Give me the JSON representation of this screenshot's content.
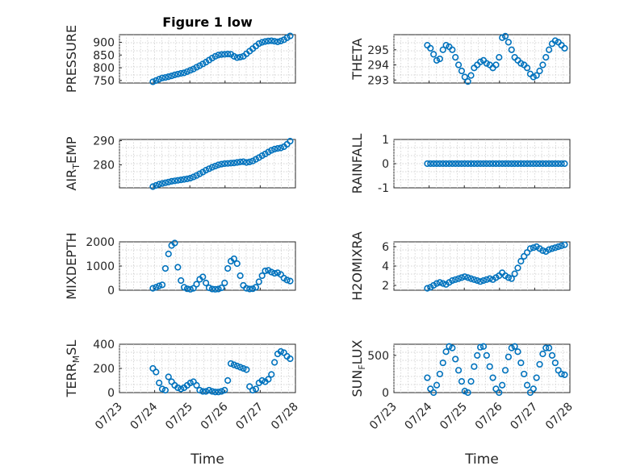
{
  "figure": {
    "title": "Figure 1 low",
    "marker_color": "#0072bd",
    "axis_color": "#262626",
    "grid_color": "#c8c8c8"
  },
  "chart_data": [
    {
      "type": "scatter",
      "marker": "circle",
      "title": "Figure 1 low",
      "ylabel": "PRESSURE",
      "ylabel_sub": "",
      "xlabel": "",
      "xlim": [
        "07/23",
        "07/28"
      ],
      "ylim": [
        740,
        930
      ],
      "yticks": [
        750,
        800,
        850,
        900
      ],
      "xticks": [
        "07/23",
        "07/24",
        "07/25",
        "07/26",
        "07/27",
        "07/28"
      ],
      "grid": true,
      "show_x_ticklabels": false,
      "series": [
        {
          "x_days_start": 0.95,
          "x_days_end": 4.85,
          "y": [
            745,
            750,
            755,
            760,
            762,
            765,
            768,
            772,
            775,
            778,
            780,
            785,
            790,
            795,
            802,
            808,
            815,
            822,
            830,
            838,
            845,
            850,
            852,
            853,
            854,
            853,
            845,
            840,
            842,
            845,
            855,
            865,
            875,
            885,
            895,
            900,
            903,
            905,
            906,
            904,
            902,
            905,
            910,
            918,
            925
          ]
        }
      ]
    },
    {
      "type": "scatter",
      "marker": "circle",
      "title": "",
      "ylabel": "THETA",
      "ylabel_sub": "",
      "xlabel": "",
      "xlim": [
        "07/23",
        "07/28"
      ],
      "ylim": [
        292.8,
        296.0
      ],
      "yticks": [
        293,
        294,
        295
      ],
      "xticks": [
        "07/23",
        "07/24",
        "07/25",
        "07/26",
        "07/27",
        "07/28"
      ],
      "grid": true,
      "show_x_ticklabels": false,
      "series": [
        {
          "x_days_start": 0.95,
          "x_days_end": 4.85,
          "y": [
            295.3,
            295.1,
            294.7,
            294.3,
            294.4,
            295.0,
            295.3,
            295.2,
            295.0,
            294.5,
            294.0,
            293.6,
            293.2,
            292.9,
            293.3,
            293.8,
            294.0,
            294.2,
            294.3,
            294.1,
            294.0,
            293.8,
            294.0,
            294.5,
            295.8,
            295.9,
            295.5,
            295.0,
            294.5,
            294.3,
            294.1,
            294.0,
            293.8,
            293.4,
            293.2,
            293.3,
            293.6,
            294.0,
            294.5,
            295.0,
            295.4,
            295.6,
            295.5,
            295.3,
            295.1
          ]
        }
      ]
    },
    {
      "type": "scatter",
      "marker": "circle",
      "title": "",
      "ylabel": "AIR",
      "ylabel_sub": "T",
      "ylabel_suffix": "EMP",
      "xlabel": "",
      "xlim": [
        "07/23",
        "07/28"
      ],
      "ylim": [
        270.5,
        290.5
      ],
      "yticks": [
        280,
        290
      ],
      "xticks": [
        "07/23",
        "07/24",
        "07/25",
        "07/26",
        "07/27",
        "07/28"
      ],
      "grid": true,
      "show_x_ticklabels": false,
      "series": [
        {
          "x_days_start": 0.95,
          "x_days_end": 4.85,
          "y": [
            271,
            271.5,
            272,
            272.3,
            272.6,
            272.9,
            273.2,
            273.4,
            273.6,
            273.8,
            274.0,
            274.2,
            274.5,
            275.0,
            275.6,
            276.3,
            277.0,
            277.8,
            278.4,
            279.0,
            279.5,
            280.0,
            280.3,
            280.5,
            280.6,
            280.7,
            280.8,
            281.0,
            281.2,
            281.3,
            281.0,
            281.2,
            281.6,
            282.3,
            283.0,
            283.8,
            284.5,
            285.3,
            286.0,
            286.5,
            286.8,
            287.0,
            287.5,
            288.5,
            289.8
          ]
        }
      ]
    },
    {
      "type": "scatter",
      "marker": "circle",
      "title": "",
      "ylabel": "RAINFALL",
      "ylabel_sub": "",
      "xlabel": "",
      "xlim": [
        "07/23",
        "07/28"
      ],
      "ylim": [
        -1,
        1
      ],
      "yticks": [
        -1,
        0,
        1
      ],
      "xticks": [
        "07/23",
        "07/24",
        "07/25",
        "07/26",
        "07/27",
        "07/28"
      ],
      "grid": true,
      "show_x_ticklabels": false,
      "series": [
        {
          "x_days_start": 0.95,
          "x_days_end": 4.85,
          "y": [
            0,
            0,
            0,
            0,
            0,
            0,
            0,
            0,
            0,
            0,
            0,
            0,
            0,
            0,
            0,
            0,
            0,
            0,
            0,
            0,
            0,
            0,
            0,
            0,
            0,
            0,
            0,
            0,
            0,
            0,
            0,
            0,
            0,
            0,
            0,
            0,
            0,
            0,
            0,
            0,
            0,
            0,
            0,
            0,
            0
          ]
        }
      ]
    },
    {
      "type": "scatter",
      "marker": "circle",
      "title": "",
      "ylabel": "MIXDEPTH",
      "ylabel_sub": "",
      "xlabel": "",
      "xlim": [
        "07/23",
        "07/28"
      ],
      "ylim": [
        0,
        2000
      ],
      "yticks": [
        0,
        1000,
        2000
      ],
      "xticks": [
        "07/23",
        "07/24",
        "07/25",
        "07/26",
        "07/27",
        "07/28"
      ],
      "grid": true,
      "show_x_ticklabels": false,
      "series": [
        {
          "x_days_start": 0.95,
          "x_days_end": 4.85,
          "y": [
            80,
            120,
            180,
            220,
            900,
            1500,
            1850,
            1950,
            950,
            400,
            120,
            60,
            40,
            80,
            250,
            450,
            550,
            300,
            100,
            50,
            40,
            50,
            100,
            300,
            900,
            1200,
            1300,
            1100,
            600,
            200,
            80,
            50,
            60,
            120,
            350,
            600,
            800,
            820,
            750,
            700,
            720,
            650,
            500,
            420,
            380
          ]
        }
      ]
    },
    {
      "type": "scatter",
      "marker": "circle",
      "title": "",
      "ylabel": "H2OMIXRA",
      "ylabel_sub": "",
      "xlabel": "",
      "xlim": [
        "07/23",
        "07/28"
      ],
      "ylim": [
        1.5,
        6.5
      ],
      "yticks": [
        2,
        4,
        6
      ],
      "xticks": [
        "07/23",
        "07/24",
        "07/25",
        "07/26",
        "07/27",
        "07/28"
      ],
      "grid": true,
      "show_x_ticklabels": false,
      "series": [
        {
          "x_days_start": 0.95,
          "x_days_end": 4.85,
          "y": [
            1.7,
            1.8,
            2.0,
            2.2,
            2.3,
            2.2,
            2.1,
            2.3,
            2.5,
            2.6,
            2.7,
            2.8,
            2.9,
            2.8,
            2.7,
            2.6,
            2.5,
            2.4,
            2.5,
            2.6,
            2.7,
            2.6,
            2.8,
            3.0,
            3.3,
            3.0,
            2.8,
            2.7,
            3.2,
            3.8,
            4.5,
            5.0,
            5.4,
            5.8,
            5.9,
            6.0,
            5.8,
            5.6,
            5.5,
            5.7,
            5.8,
            5.9,
            6.0,
            6.1,
            6.2
          ]
        }
      ]
    },
    {
      "type": "scatter",
      "marker": "circle",
      "title": "",
      "ylabel": "TERR",
      "ylabel_sub": "M",
      "ylabel_suffix": "SL",
      "xlabel": "Time",
      "xlim": [
        "07/23",
        "07/28"
      ],
      "ylim": [
        0,
        400
      ],
      "yticks": [
        0,
        200,
        400
      ],
      "xticks": [
        "07/23",
        "07/24",
        "07/25",
        "07/26",
        "07/27",
        "07/28"
      ],
      "grid": true,
      "show_x_ticklabels": true,
      "series": [
        {
          "x_days_start": 0.95,
          "x_days_end": 4.85,
          "y": [
            200,
            170,
            80,
            30,
            20,
            130,
            90,
            60,
            40,
            30,
            40,
            60,
            80,
            90,
            60,
            20,
            10,
            10,
            20,
            10,
            5,
            5,
            10,
            20,
            100,
            240,
            230,
            220,
            210,
            200,
            190,
            50,
            20,
            30,
            80,
            100,
            90,
            110,
            150,
            250,
            320,
            340,
            330,
            300,
            280
          ]
        }
      ]
    },
    {
      "type": "scatter",
      "marker": "circle",
      "title": "",
      "ylabel": "SUN",
      "ylabel_sub": "F",
      "ylabel_suffix": "LUX",
      "xlabel": "Time",
      "xlim": [
        "07/23",
        "07/28"
      ],
      "ylim": [
        0,
        650
      ],
      "yticks": [
        0,
        500
      ],
      "xticks": [
        "07/23",
        "07/24",
        "07/25",
        "07/26",
        "07/27",
        "07/28"
      ],
      "grid": true,
      "show_x_ticklabels": true,
      "series": [
        {
          "x_days_start": 0.95,
          "x_days_end": 4.85,
          "y": [
            200,
            50,
            0,
            100,
            250,
            400,
            550,
            620,
            600,
            450,
            300,
            150,
            20,
            0,
            150,
            350,
            500,
            610,
            620,
            500,
            350,
            200,
            50,
            0,
            100,
            300,
            480,
            600,
            620,
            550,
            400,
            250,
            100,
            0,
            50,
            200,
            380,
            520,
            600,
            600,
            500,
            400,
            300,
            250,
            240
          ]
        }
      ]
    }
  ]
}
